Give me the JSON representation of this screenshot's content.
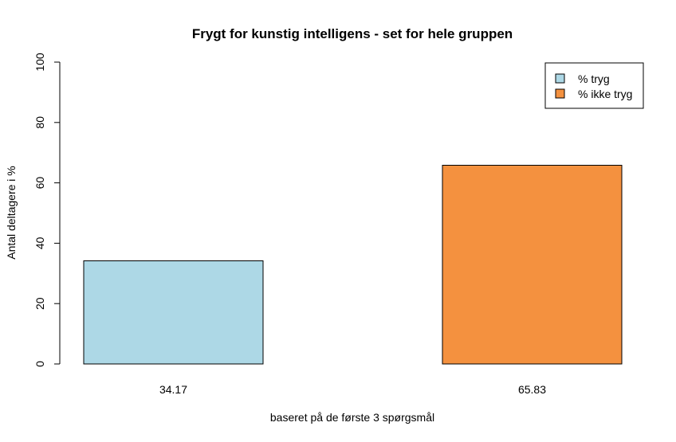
{
  "chart_data": {
    "type": "bar",
    "title": "Frygt for kunstig intelligens - set for hele gruppen",
    "xlabel": "baseret på de første 3 spørgsmål",
    "ylabel": "Antal deltagere i %",
    "ylim": [
      0,
      100
    ],
    "yticks": [
      "0",
      "20",
      "40",
      "60",
      "80",
      "100"
    ],
    "series": [
      {
        "name": "% tryg",
        "value": 34.17,
        "label": "34.17",
        "color": "#add8e6"
      },
      {
        "name": "% ikke tryg",
        "value": 65.83,
        "label": "65.83",
        "color": "#f4913f"
      }
    ],
    "legend_position": "top-right",
    "grid": false
  }
}
